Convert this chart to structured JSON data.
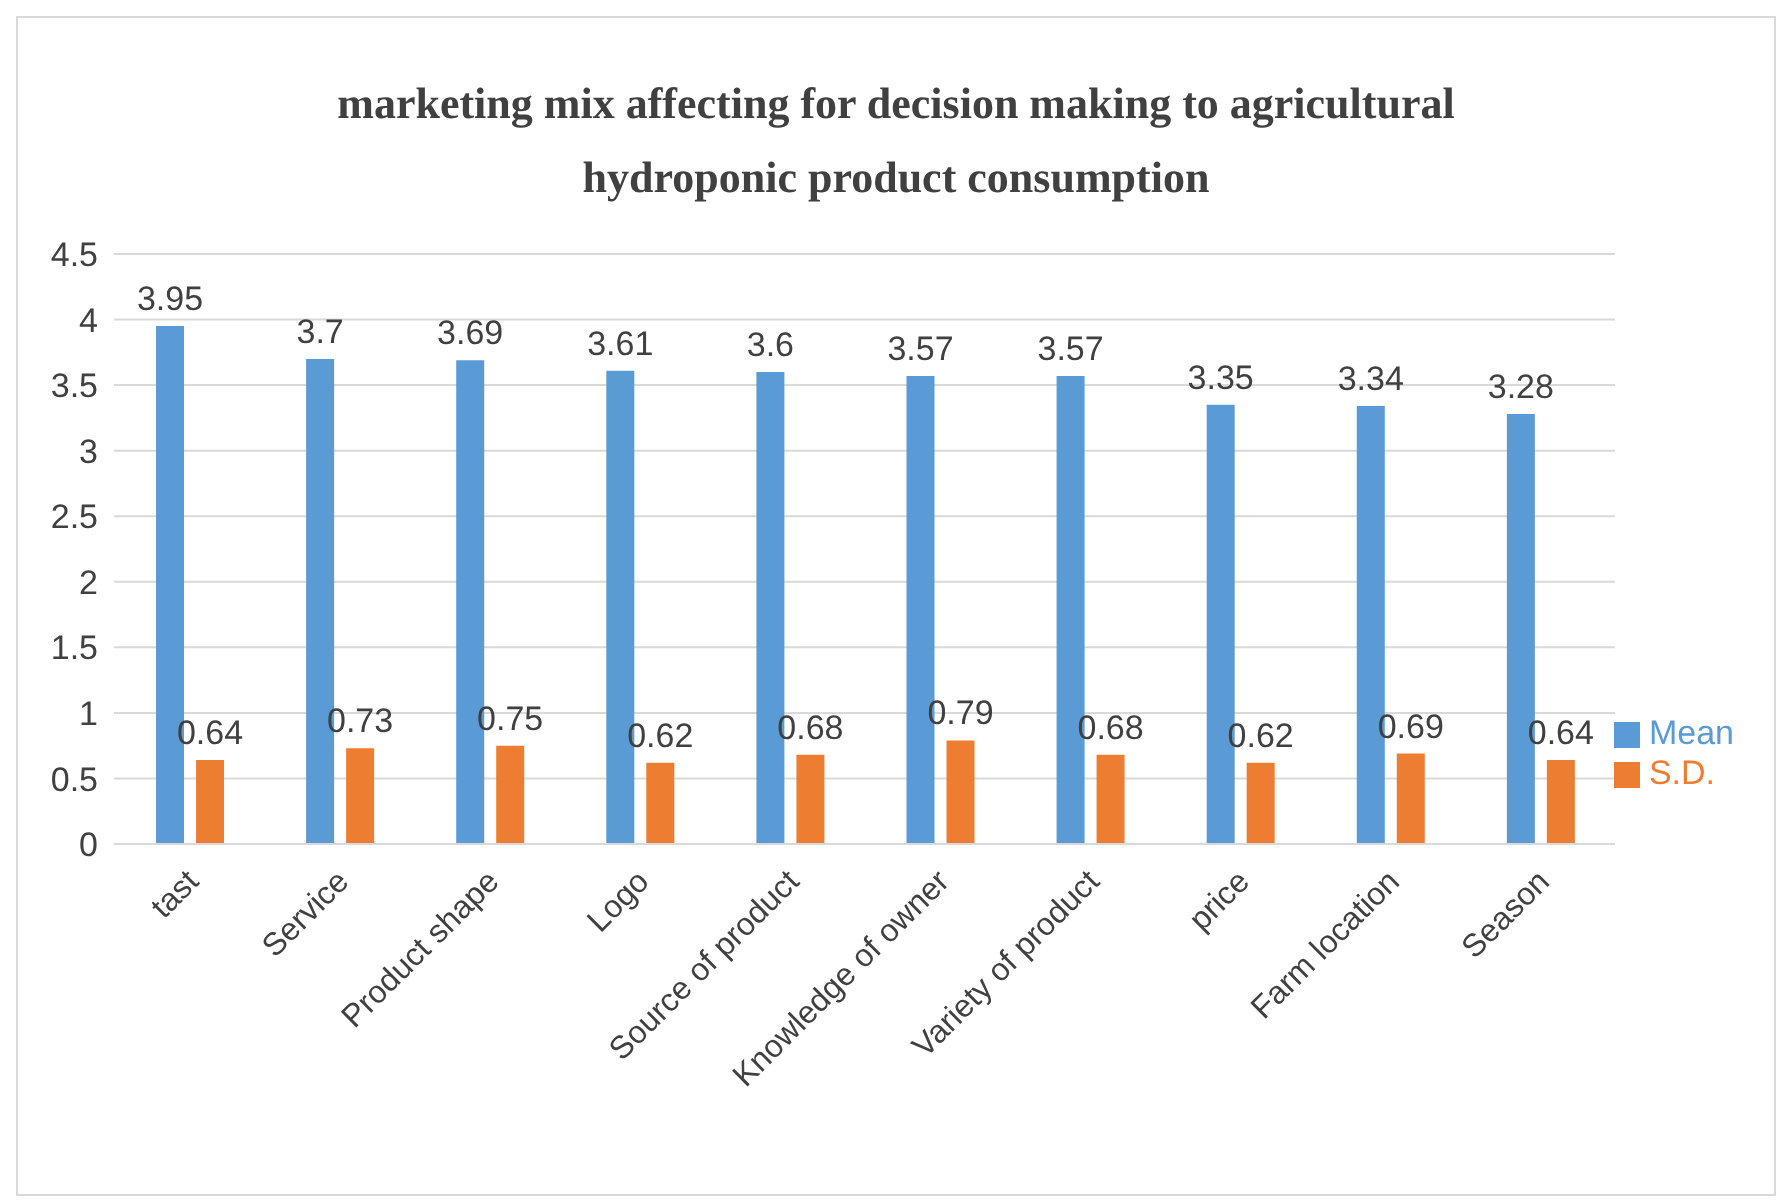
{
  "chart_data": {
    "type": "bar",
    "title": "marketing mix affecting for decision making to agricultural hydroponic product consumption",
    "categories": [
      "tast",
      "Service",
      "Product shape",
      "Logo",
      "Source of product",
      "Knowledge of owner",
      "Variety of product",
      "price",
      "Farm location",
      "Season"
    ],
    "series": [
      {
        "name": "Mean",
        "color": "#5b9bd5",
        "values": [
          3.95,
          3.7,
          3.69,
          3.61,
          3.6,
          3.57,
          3.57,
          3.35,
          3.34,
          3.28
        ]
      },
      {
        "name": "S.D.",
        "color": "#ed7d31",
        "values": [
          0.64,
          0.73,
          0.75,
          0.62,
          0.68,
          0.79,
          0.68,
          0.62,
          0.69,
          0.64
        ]
      }
    ],
    "ylim": [
      0,
      4.5
    ],
    "yticks": [
      0,
      0.5,
      1,
      1.5,
      2,
      2.5,
      3,
      3.5,
      4,
      4.5
    ],
    "grid": "y",
    "legend": "right",
    "data_labels": true
  }
}
